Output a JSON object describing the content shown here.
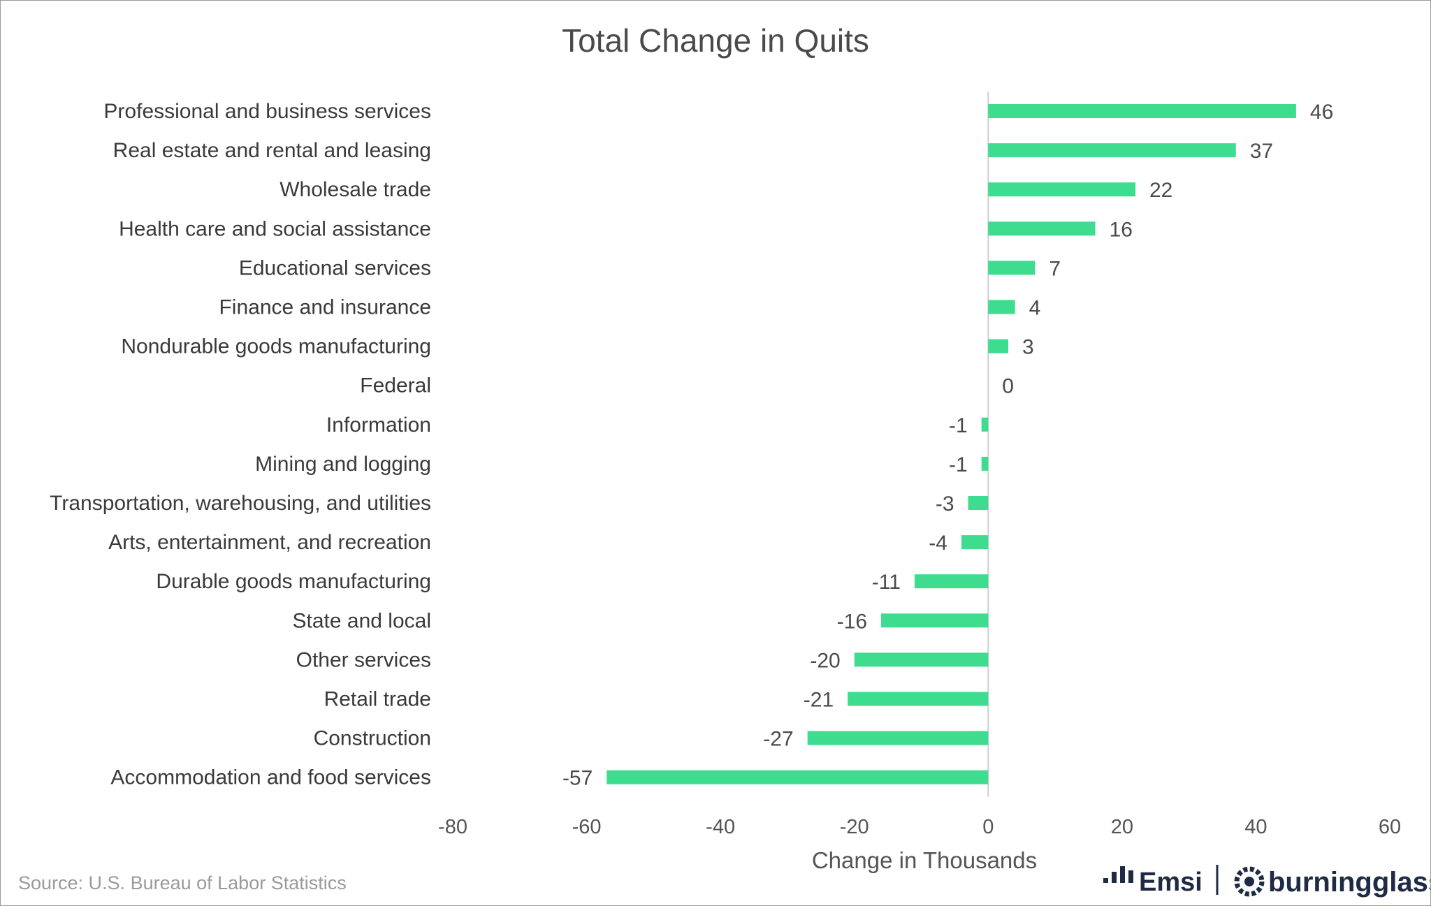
{
  "chart_data": {
    "type": "bar",
    "orientation": "horizontal",
    "title": "Total Change in Quits",
    "xlabel": "Change in Thousands",
    "ylabel": "",
    "xlim": [
      -80,
      60
    ],
    "x_ticks": [
      -80,
      -60,
      -40,
      -20,
      0,
      20,
      40,
      60
    ],
    "grid": false,
    "bar_color": "#3ddc8f",
    "categories": [
      "Professional and business services",
      "Real estate and rental and leasing",
      "Wholesale trade",
      "Health care and social assistance",
      "Educational services",
      "Finance and insurance",
      "Nondurable goods manufacturing",
      "Federal",
      "Information",
      "Mining and logging",
      "Transportation, warehousing, and utilities",
      "Arts, entertainment, and recreation",
      "Durable goods manufacturing",
      "State and local",
      "Other services",
      "Retail trade",
      "Construction",
      "Accommodation and food services"
    ],
    "values": [
      46,
      37,
      22,
      16,
      7,
      4,
      3,
      0,
      -1,
      -1,
      -3,
      -4,
      -11,
      -16,
      -20,
      -21,
      -27,
      -57
    ]
  },
  "source_text": "Source:  U.S. Bureau of Labor Statistics",
  "logos": {
    "emsi": "Emsi",
    "burningglass": "burningglass"
  },
  "colors": {
    "axis": "#cfcfcf",
    "logo": "#1f2a44"
  }
}
